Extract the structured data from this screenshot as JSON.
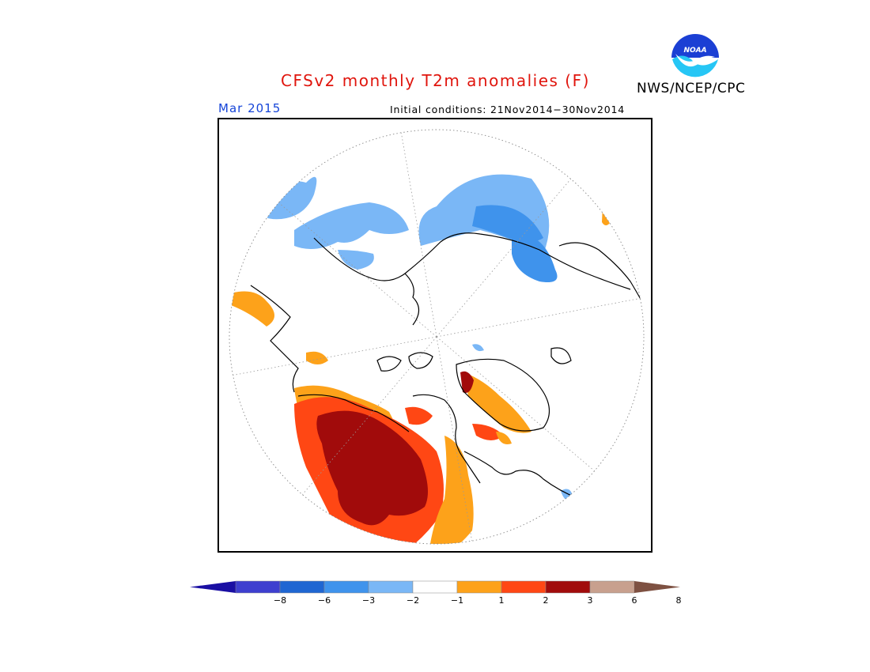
{
  "header": {
    "title": "CFSv2 monthly T2m anomalies (F)",
    "agency": "NWS/NCEP/CPC",
    "month": "Mar 2015",
    "initial_conditions": "Initial conditions: 21Nov2014−30Nov2014",
    "logo_text": "NOAA"
  },
  "colors": {
    "title": "#e0150d",
    "month": "#1544d8",
    "logo_blue": "#1b3fd4",
    "logo_cyan": "#26c6f5"
  },
  "legend": {
    "type": "colorbar",
    "bins": [
      {
        "range": "below -8",
        "color": "#1a0fa3"
      },
      {
        "range": "-8 to -6",
        "color": "#3e3fcf"
      },
      {
        "range": "-6 to -3",
        "color": "#1f66d2"
      },
      {
        "range": "-3 to -2",
        "color": "#3f93ec"
      },
      {
        "range": "-2 to -1",
        "color": "#7ab7f6"
      },
      {
        "range": "-1 to 1",
        "color": "#ffffff"
      },
      {
        "range": "1 to 2",
        "color": "#fda21a"
      },
      {
        "range": "2 to 3",
        "color": "#ff4714"
      },
      {
        "range": "3 to 6",
        "color": "#a10b0b"
      },
      {
        "range": "6 to 8",
        "color": "#c8a08e"
      },
      {
        "range": "above 8",
        "color": "#7e5142"
      }
    ],
    "tick_labels": [
      "−8",
      "−6",
      "−3",
      "−2",
      "−1",
      "1",
      "2",
      "3",
      "6",
      "8"
    ]
  },
  "map": {
    "projection": "north polar stereographic",
    "variable": "2m temperature anomaly",
    "units": "F",
    "anomaly_regions": [
      {
        "region": "northern Siberia / Russian Arctic",
        "category": "-2 to -1"
      },
      {
        "region": "Scandinavia / northern Europe",
        "category": "-3 to -1"
      },
      {
        "region": "Alaska / Bering coast",
        "category": "1 to 2"
      },
      {
        "region": "western Canada / Alaska interior",
        "category": "3 to 6"
      },
      {
        "region": "central Canada",
        "category": "2 to 3"
      },
      {
        "region": "eastern Canada / Hudson Bay",
        "category": "1 to 2"
      },
      {
        "region": "Canadian Arctic Archipelago / Greenland coast",
        "category": "1 to 3"
      },
      {
        "region": "northwest Africa / Iberia edge",
        "category": "-2 to -1"
      },
      {
        "region": "Himalaya / East Asia edge",
        "category": "1 to 2"
      }
    ]
  }
}
